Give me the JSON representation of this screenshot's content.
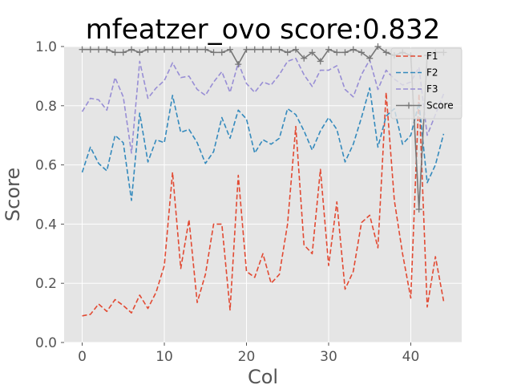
{
  "chart_data": {
    "type": "line",
    "title": "mfeatzer_ovo score:0.832",
    "xlabel": "Col",
    "ylabel": "Score",
    "xlim": [
      -2.2,
      46.2
    ],
    "ylim": [
      0.0,
      1.0
    ],
    "xticks": [
      0,
      10,
      20,
      30,
      40
    ],
    "yticks": [
      0.0,
      0.2,
      0.4,
      0.6,
      0.8,
      1.0
    ],
    "grid": true,
    "legend": "top-right",
    "x": [
      0,
      1,
      2,
      3,
      4,
      5,
      6,
      7,
      8,
      9,
      10,
      11,
      12,
      13,
      14,
      15,
      16,
      17,
      18,
      19,
      20,
      21,
      22,
      23,
      24,
      25,
      26,
      27,
      28,
      29,
      30,
      31,
      32,
      33,
      34,
      35,
      36,
      37,
      38,
      39,
      40,
      41,
      42,
      43,
      44
    ],
    "series": [
      {
        "name": "F1",
        "color": "#e24a33",
        "dash": "dashed",
        "values": [
          0.09,
          0.095,
          0.13,
          0.105,
          0.145,
          0.125,
          0.1,
          0.16,
          0.115,
          0.17,
          0.26,
          0.575,
          0.25,
          0.415,
          0.135,
          0.23,
          0.4,
          0.4,
          0.11,
          0.565,
          0.24,
          0.22,
          0.3,
          0.2,
          0.23,
          0.4,
          0.73,
          0.33,
          0.3,
          0.585,
          0.26,
          0.475,
          0.18,
          0.24,
          0.405,
          0.43,
          0.32,
          0.845,
          0.48,
          0.3,
          0.15,
          0.84,
          0.12,
          0.29,
          0.14
        ]
      },
      {
        "name": "F2",
        "color": "#348abd",
        "dash": "dashed",
        "values": [
          0.575,
          0.66,
          0.605,
          0.58,
          0.7,
          0.675,
          0.48,
          0.775,
          0.61,
          0.685,
          0.675,
          0.835,
          0.71,
          0.72,
          0.675,
          0.605,
          0.645,
          0.76,
          0.69,
          0.785,
          0.755,
          0.64,
          0.685,
          0.67,
          0.69,
          0.79,
          0.77,
          0.715,
          0.65,
          0.715,
          0.76,
          0.72,
          0.61,
          0.67,
          0.76,
          0.86,
          0.66,
          0.765,
          0.79,
          0.67,
          0.7,
          0.81,
          0.54,
          0.6,
          0.705
        ]
      },
      {
        "name": "F3",
        "color": "#988ed5",
        "dash": "dashed",
        "values": [
          0.78,
          0.825,
          0.82,
          0.785,
          0.895,
          0.83,
          0.64,
          0.95,
          0.825,
          0.86,
          0.885,
          0.945,
          0.895,
          0.9,
          0.855,
          0.835,
          0.88,
          0.915,
          0.845,
          0.945,
          0.875,
          0.845,
          0.88,
          0.87,
          0.905,
          0.95,
          0.96,
          0.905,
          0.865,
          0.92,
          0.92,
          0.935,
          0.855,
          0.83,
          0.905,
          0.955,
          0.855,
          0.92,
          0.89,
          0.87,
          0.88,
          0.93,
          0.7,
          0.77,
          0.84
        ]
      },
      {
        "name": "Score",
        "color": "#777777",
        "dash": "solid",
        "values": [
          0.99,
          0.99,
          0.99,
          0.99,
          0.98,
          0.98,
          0.99,
          0.98,
          0.99,
          0.99,
          0.99,
          0.99,
          0.99,
          0.99,
          0.99,
          0.99,
          0.98,
          0.98,
          0.99,
          0.94,
          0.99,
          0.99,
          0.99,
          0.99,
          0.99,
          0.98,
          0.99,
          0.96,
          0.98,
          0.95,
          0.99,
          0.98,
          0.98,
          0.99,
          0.98,
          0.96,
          1.0,
          0.98,
          0.97,
          0.98,
          0.97,
          0.45,
          0.97,
          0.98,
          0.98
        ]
      }
    ]
  }
}
